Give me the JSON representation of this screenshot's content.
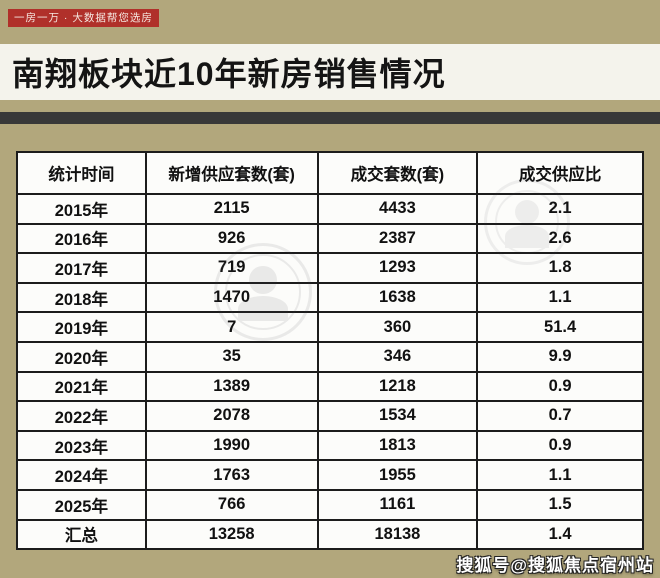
{
  "badge": {
    "label": "一房一万 · 大数据帮您选房"
  },
  "title": "南翔板块近10年新房销售情况",
  "watermark": {
    "bottom_right": "搜狐号@搜狐焦点宿州站"
  },
  "colors": {
    "background_tan": "#b2a77c",
    "badge_red": "#b0302a",
    "divider_dark": "#383838",
    "table_border": "#1c1c1c"
  },
  "chart_data": {
    "type": "table",
    "title": "南翔板块近10年新房销售情况",
    "columns": [
      "统计时间",
      "新增供应套数(套)",
      "成交套数(套)",
      "成交供应比"
    ],
    "rows": [
      [
        "2015年",
        "2115",
        "4433",
        "2.1"
      ],
      [
        "2016年",
        "926",
        "2387",
        "2.6"
      ],
      [
        "2017年",
        "719",
        "1293",
        "1.8"
      ],
      [
        "2018年",
        "1470",
        "1638",
        "1.1"
      ],
      [
        "2019年",
        "7",
        "360",
        "51.4"
      ],
      [
        "2020年",
        "35",
        "346",
        "9.9"
      ],
      [
        "2021年",
        "1389",
        "1218",
        "0.9"
      ],
      [
        "2022年",
        "2078",
        "1534",
        "0.7"
      ],
      [
        "2023年",
        "1990",
        "1813",
        "0.9"
      ],
      [
        "2024年",
        "1763",
        "1955",
        "1.1"
      ],
      [
        "2025年",
        "766",
        "1161",
        "1.5"
      ],
      [
        "汇总",
        "13258",
        "18138",
        "1.4"
      ]
    ]
  }
}
